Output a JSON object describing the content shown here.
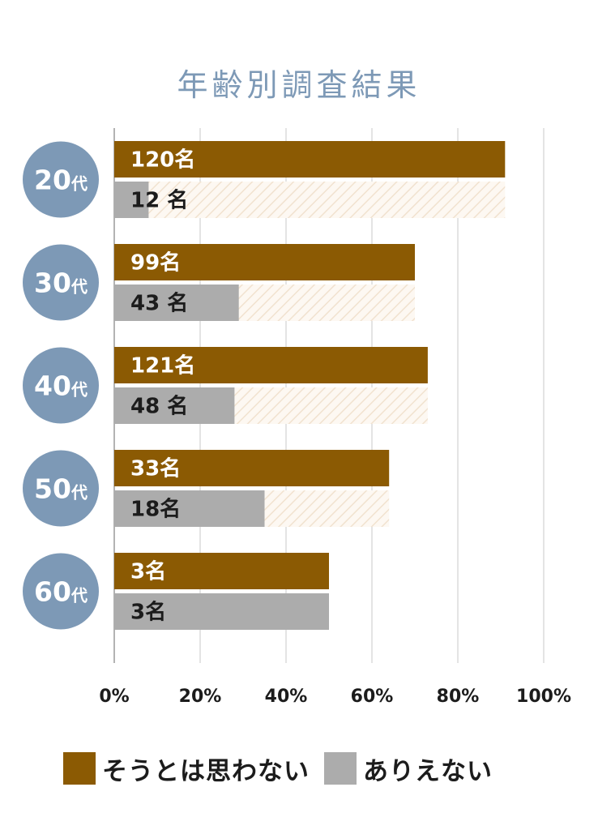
{
  "chart_data": {
    "type": "bar",
    "orientation": "horizontal",
    "title": "年齢別調査結果",
    "categories": [
      "20代",
      "30代",
      "40代",
      "50代",
      "60代"
    ],
    "category_number": [
      "20",
      "30",
      "40",
      "50",
      "60"
    ],
    "category_suffix": "代",
    "series": [
      {
        "name": "そうとは思わない",
        "color": "#8b5a03",
        "percent": [
          91,
          70,
          73,
          64,
          50
        ],
        "labels": [
          "120名",
          "99名",
          "121名",
          "33名",
          "3名"
        ]
      },
      {
        "name": "ありえない",
        "color": "#acacac",
        "percent": [
          8,
          29,
          28,
          35,
          50
        ],
        "labels": [
          "12 名",
          "43 名",
          "48 名",
          "18名",
          "3名"
        ]
      }
    ],
    "xlim": [
      0,
      100
    ],
    "x_ticks": [
      0,
      20,
      40,
      60,
      80,
      100
    ],
    "x_tick_labels": [
      "0%",
      "20%",
      "40%",
      "60%",
      "80%",
      "100%"
    ],
    "grid": true,
    "legend_position": "bottom",
    "colors": {
      "title": "#7d99b6",
      "badge": "#7d99b6",
      "grid": "#c8c8c8",
      "hatch": "#f3e6d6"
    }
  }
}
